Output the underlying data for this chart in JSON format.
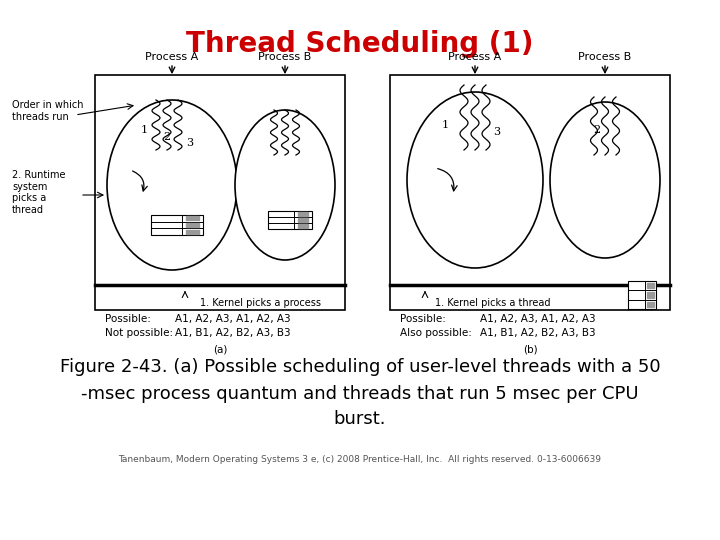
{
  "title": "Thread Scheduling (1)",
  "title_color": "#cc0000",
  "title_fontsize": 20,
  "fig_caption_line1": "Figure 2-43. (a) Possible scheduling of user-level threads with a 50",
  "fig_caption_line2": "-msec process quantum and threads that run 5 msec per CPU",
  "fig_caption_line3": "burst.",
  "fig_caption_fontsize": 13,
  "tanenbaum_credit": "Tanenbaum, Modern Operating Systems 3 e, (c) 2008 Prentice-Hall, Inc.  All rights reserved. 0-13-6006639",
  "credit_fontsize": 6.5,
  "background_color": "#ffffff"
}
